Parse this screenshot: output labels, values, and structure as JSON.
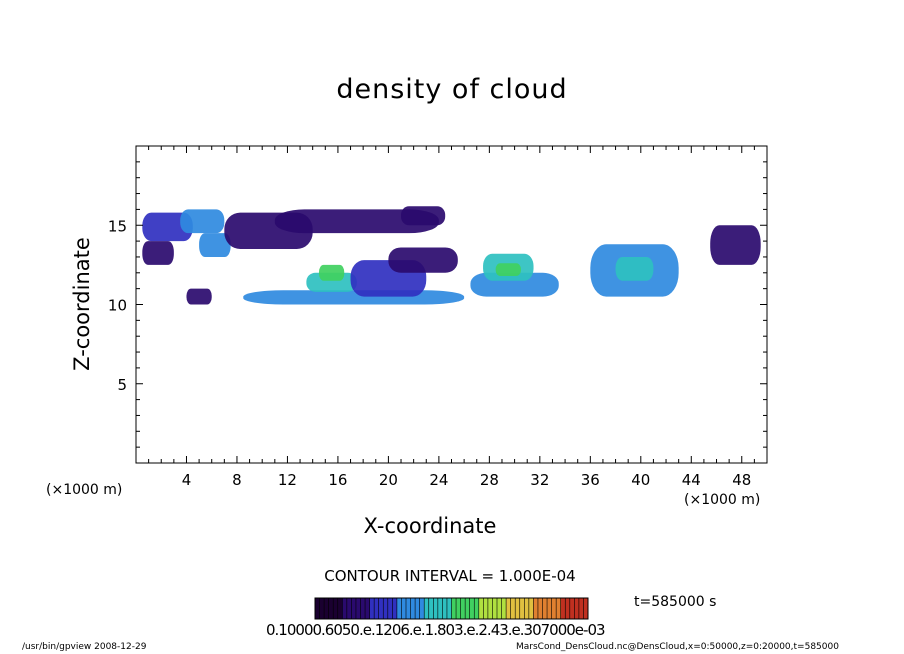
{
  "chart_data": {
    "type": "heatmap",
    "title": "density of cloud",
    "xlabel": "X-coordinate",
    "ylabel": "Z-coordinate",
    "x_unit": "(×1000 m)",
    "x_ticks": [
      "4",
      "8",
      "12",
      "16",
      "20",
      "24",
      "28",
      "32",
      "36",
      "40",
      "44",
      "48"
    ],
    "y_ticks": [
      "5",
      "10",
      "15"
    ],
    "xlim": [
      0,
      50
    ],
    "ylim": [
      0,
      20
    ],
    "contour_interval": "CONTOUR INTERVAL = 1.000E-04",
    "time_label": "t=585000 s",
    "colorbar_labels": "0.10000e-60.05000e-120.00e-180.00e-240.00e-300.00e-3",
    "colorbar_display": "0.10000.6050.e.1206.e.1.803.e.2.43.e.307000e-03",
    "colormap": [
      "#1a0030",
      "#2a0a6e",
      "#3030c0",
      "#2f8ae0",
      "#2ec0c0",
      "#40d060",
      "#b0e040",
      "#e0c040",
      "#e08030",
      "#c03020"
    ],
    "cells": [
      {
        "x": [
          0.5,
          4.5
        ],
        "z": [
          14.0,
          15.8
        ],
        "v": 0.2
      },
      {
        "x": [
          3.5,
          7.0
        ],
        "z": [
          14.5,
          16.0
        ],
        "v": 0.35
      },
      {
        "x": [
          5.0,
          7.5
        ],
        "z": [
          13.0,
          14.5
        ],
        "v": 0.3
      },
      {
        "x": [
          7.0,
          14.0
        ],
        "z": [
          13.5,
          15.8
        ],
        "v": 0.15
      },
      {
        "x": [
          11.0,
          24.0
        ],
        "z": [
          14.5,
          16.0
        ],
        "v": 0.15
      },
      {
        "x": [
          21.0,
          24.5
        ],
        "z": [
          15.0,
          16.2
        ],
        "v": 0.12
      },
      {
        "x": [
          0.5,
          3.0
        ],
        "z": [
          12.5,
          14.0
        ],
        "v": 0.12
      },
      {
        "x": [
          4.0,
          6.0
        ],
        "z": [
          10.0,
          11.0
        ],
        "v": 0.15
      },
      {
        "x": [
          8.5,
          26.0
        ],
        "z": [
          10.0,
          10.9
        ],
        "v": 0.35
      },
      {
        "x": [
          13.5,
          17.5
        ],
        "z": [
          10.8,
          12.0
        ],
        "v": 0.4
      },
      {
        "x": [
          14.5,
          16.5
        ],
        "z": [
          11.5,
          12.5
        ],
        "v": 0.55
      },
      {
        "x": [
          17.0,
          23.0
        ],
        "z": [
          10.5,
          12.8
        ],
        "v": 0.25
      },
      {
        "x": [
          20.0,
          25.5
        ],
        "z": [
          12.0,
          13.6
        ],
        "v": 0.18
      },
      {
        "x": [
          26.5,
          33.5
        ],
        "z": [
          10.5,
          12.0
        ],
        "v": 0.35
      },
      {
        "x": [
          27.5,
          31.5
        ],
        "z": [
          11.5,
          13.2
        ],
        "v": 0.4
      },
      {
        "x": [
          28.5,
          30.5
        ],
        "z": [
          11.8,
          12.6
        ],
        "v": 0.55
      },
      {
        "x": [
          36.0,
          43.0
        ],
        "z": [
          10.5,
          13.8
        ],
        "v": 0.3
      },
      {
        "x": [
          38.0,
          41.0
        ],
        "z": [
          11.5,
          13.0
        ],
        "v": 0.4
      },
      {
        "x": [
          45.5,
          49.5
        ],
        "z": [
          12.5,
          15.0
        ],
        "v": 0.15
      }
    ]
  },
  "footer": {
    "left": "/usr/bin/gpview 2008-12-29",
    "right": "MarsCond_DensCloud.nc@DensCloud,x=0:50000,z=0:20000,t=585000"
  }
}
